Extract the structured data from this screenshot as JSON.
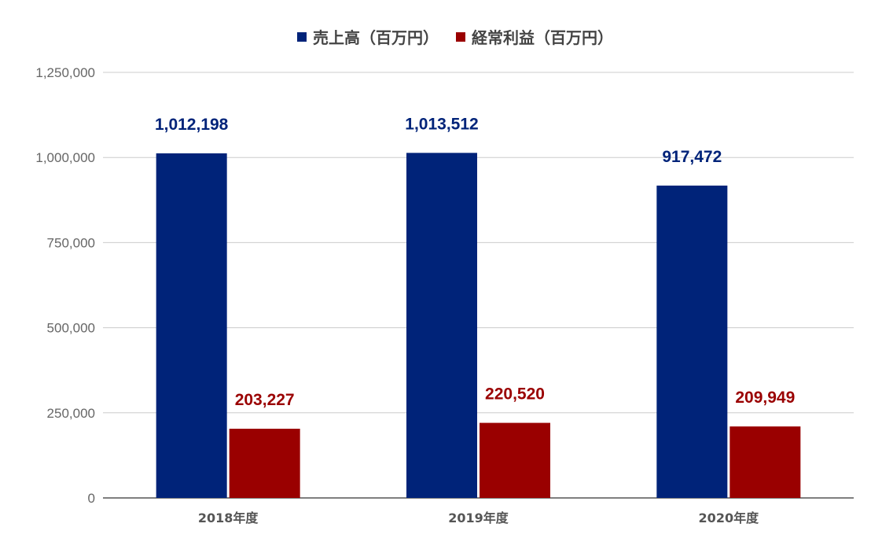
{
  "chart_data": {
    "type": "bar",
    "categories": [
      "2018年度",
      "2019年度",
      "2020年度"
    ],
    "series": [
      {
        "name": "売上高（百万円）",
        "values": [
          1012198,
          1013512,
          917472
        ],
        "labels": [
          "1,012,198",
          "1,013,512",
          "917,472"
        ],
        "color": "#002379"
      },
      {
        "name": "経常利益（百万円）",
        "values": [
          203227,
          220520,
          209949
        ],
        "labels": [
          "203,227",
          "220,520",
          "209,949"
        ],
        "color": "#9A0000"
      }
    ],
    "ylim": [
      0,
      1250000
    ],
    "yticks": [
      0,
      250000,
      500000,
      750000,
      1000000,
      1250000
    ],
    "ytick_labels": [
      "0",
      "250,000",
      "500,000",
      "750,000",
      "1,000,000",
      "1,250,000"
    ],
    "grid": true,
    "legend_position": "top-center",
    "title": "",
    "xlabel": "",
    "ylabel": ""
  }
}
